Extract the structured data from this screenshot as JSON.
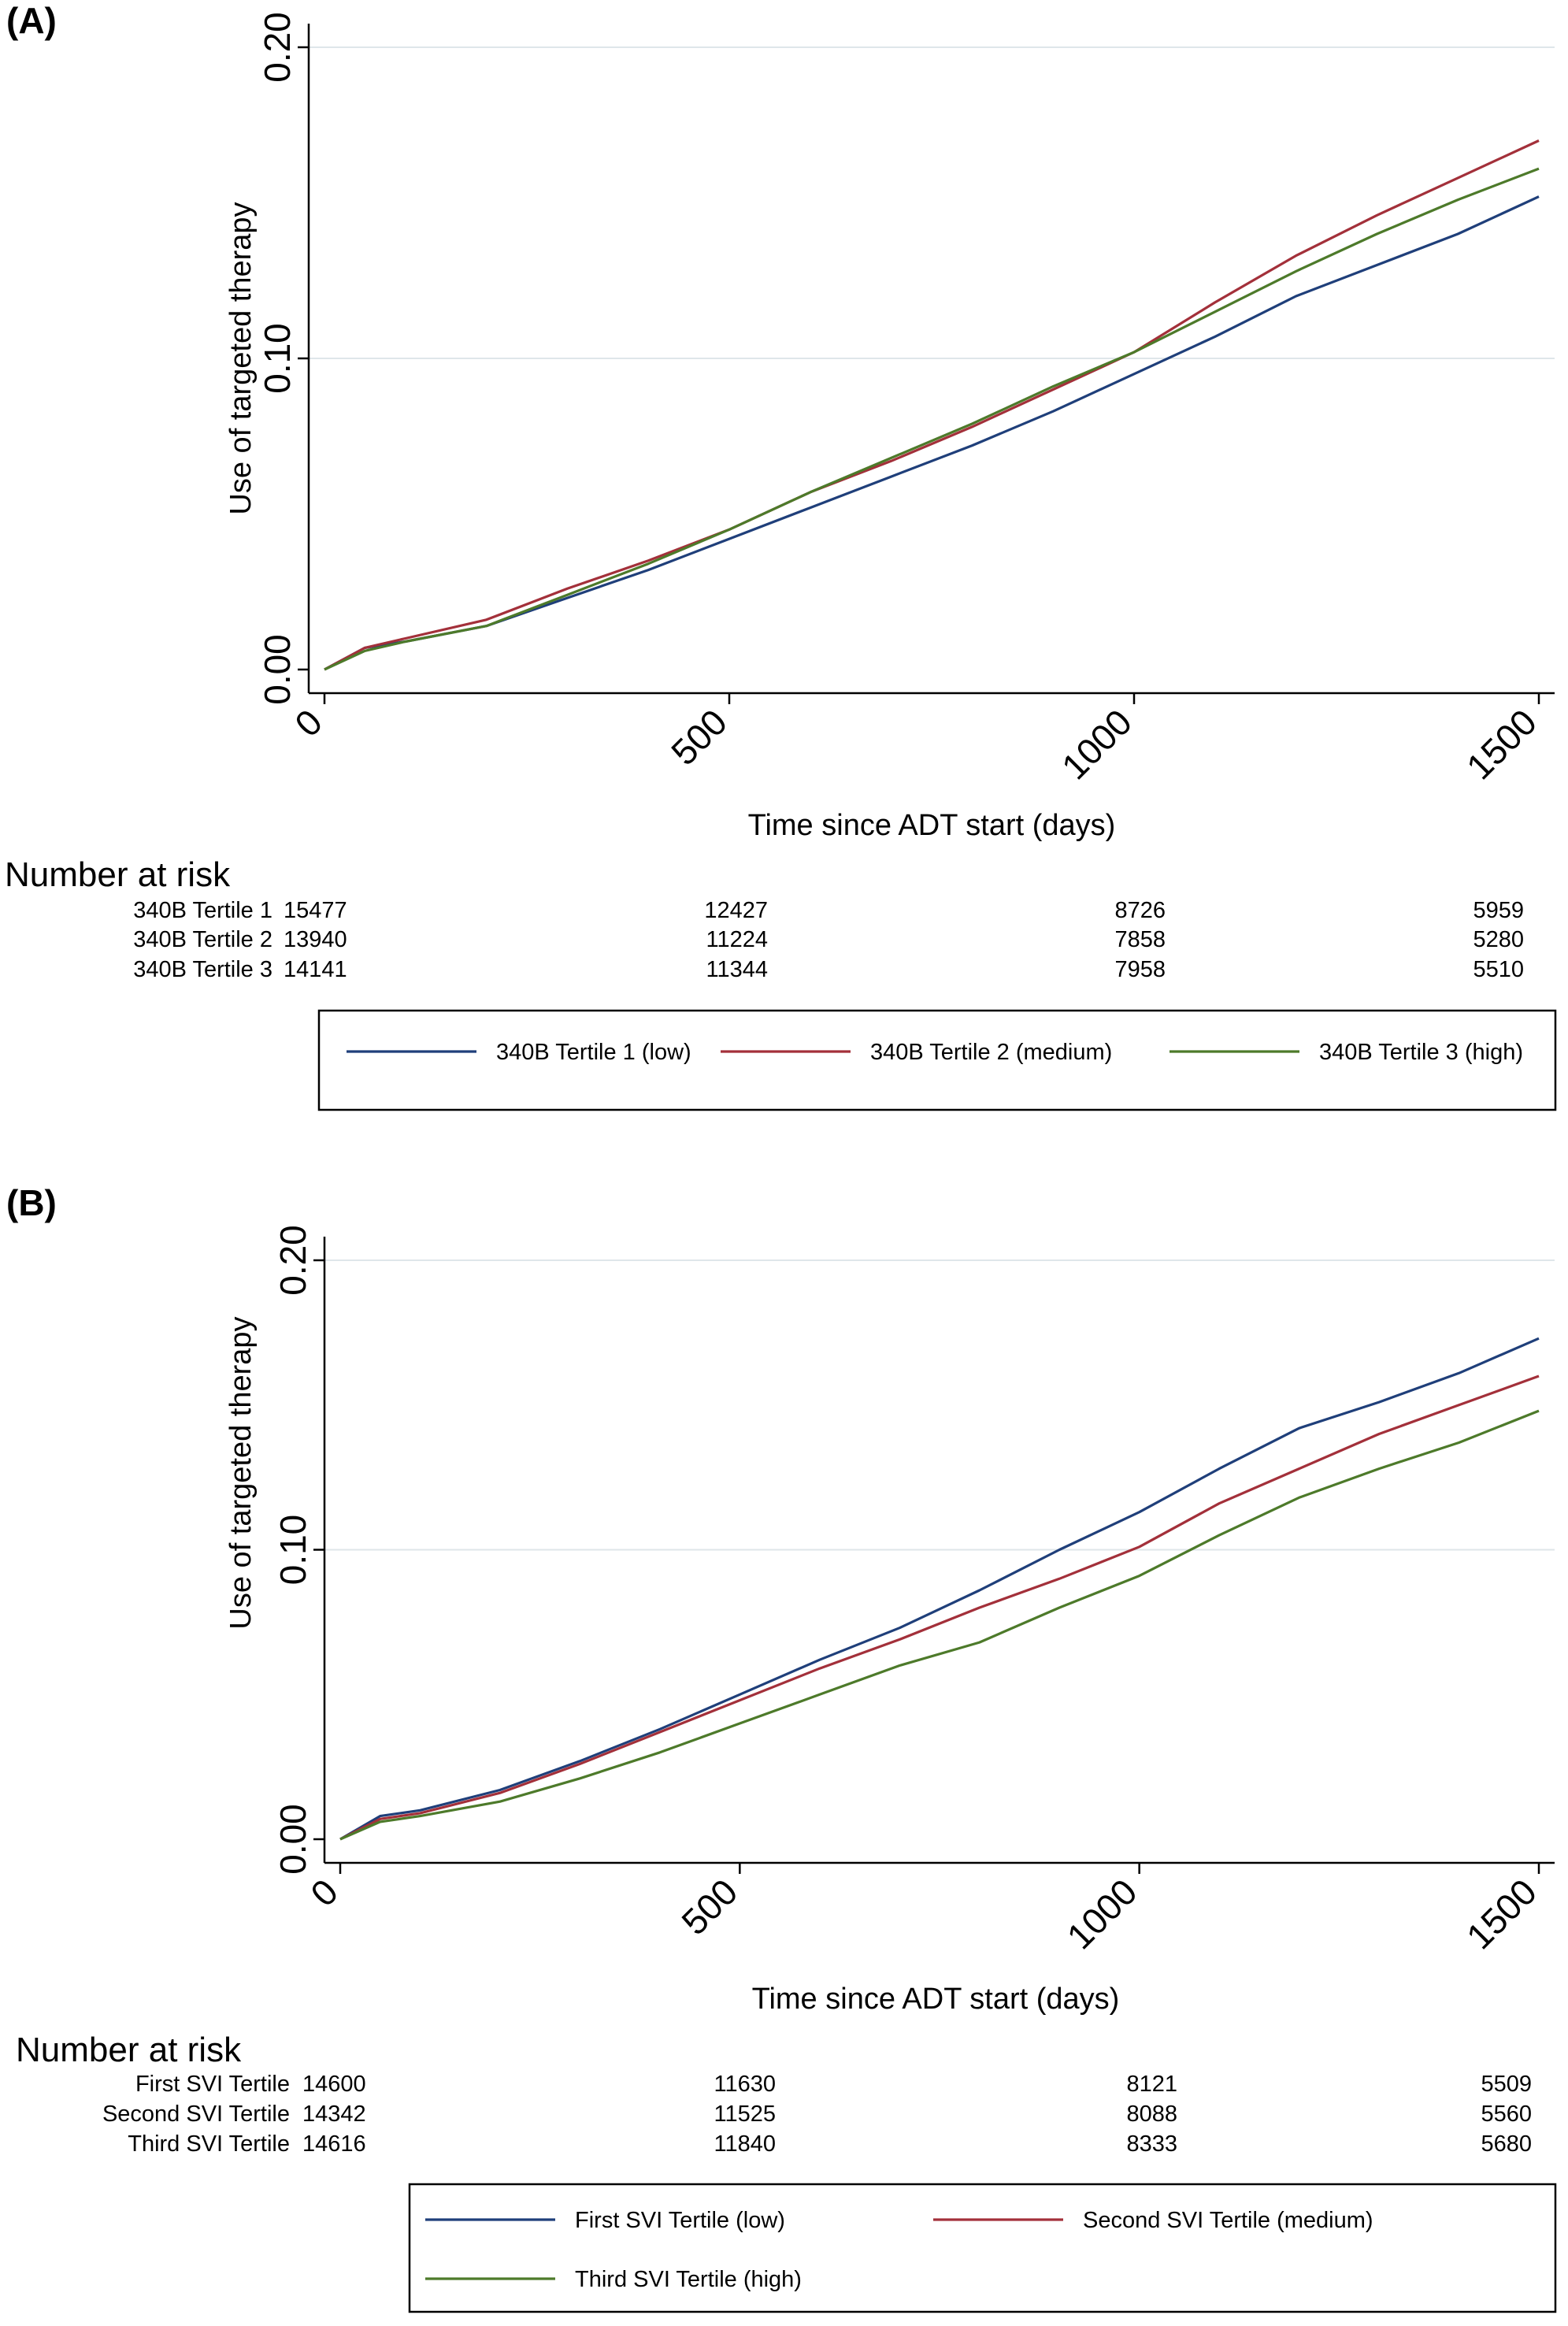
{
  "chart_data": [
    {
      "type": "line",
      "panel_label": "(A)",
      "xlabel": "Time since ADT start (days)",
      "ylabel": "Use of targeted therapy",
      "xlim": [
        0,
        1500
      ],
      "ylim": [
        0,
        0.2
      ],
      "x_ticks": [
        "0",
        "500",
        "1000",
        "1500"
      ],
      "y_ticks": [
        "0.00",
        "0.10",
        "0.20"
      ],
      "grid": "horizontal",
      "series": [
        {
          "name": "340B Tertile 1 (low)",
          "color": "#1f3f7a",
          "x": [
            0,
            50,
            100,
            200,
            300,
            400,
            500,
            600,
            700,
            800,
            900,
            1000,
            1100,
            1200,
            1300,
            1400,
            1500
          ],
          "y": [
            0,
            0.007,
            0.009,
            0.014,
            0.023,
            0.032,
            0.042,
            0.052,
            0.062,
            0.072,
            0.083,
            0.095,
            0.107,
            0.12,
            0.13,
            0.14,
            0.152
          ]
        },
        {
          "name": "340B Tertile 2 (medium)",
          "color": "#a3303a",
          "x": [
            0,
            50,
            100,
            200,
            300,
            400,
            500,
            600,
            700,
            800,
            900,
            1000,
            1100,
            1200,
            1300,
            1400,
            1500
          ],
          "y": [
            0,
            0.007,
            0.01,
            0.016,
            0.026,
            0.035,
            0.045,
            0.057,
            0.067,
            0.078,
            0.09,
            0.102,
            0.118,
            0.133,
            0.146,
            0.158,
            0.17
          ]
        },
        {
          "name": "340B Tertile 3 (high)",
          "color": "#4d7a2a",
          "x": [
            0,
            50,
            100,
            200,
            300,
            400,
            500,
            600,
            700,
            800,
            900,
            1000,
            1100,
            1200,
            1300,
            1400,
            1500
          ],
          "y": [
            0,
            0.006,
            0.009,
            0.014,
            0.024,
            0.034,
            0.045,
            0.057,
            0.068,
            0.079,
            0.091,
            0.102,
            0.115,
            0.128,
            0.14,
            0.151,
            0.161
          ]
        }
      ],
      "risk_table": {
        "title": "Number at risk",
        "columns": [
          "0",
          "500",
          "1000",
          "1500"
        ],
        "rows": [
          {
            "label": "340B Tertile 1",
            "values": [
              "15477",
              "12427",
              "8726",
              "5959"
            ]
          },
          {
            "label": "340B Tertile 2",
            "values": [
              "13940",
              "11224",
              "7858",
              "5280"
            ]
          },
          {
            "label": "340B Tertile 3",
            "values": [
              "14141",
              "11344",
              "7958",
              "5510"
            ]
          }
        ]
      },
      "legend_placement": "bottom"
    },
    {
      "type": "line",
      "panel_label": "(B)",
      "xlabel": "Time since ADT start (days)",
      "ylabel": "Use of targeted therapy",
      "xlim": [
        0,
        1500
      ],
      "ylim": [
        0,
        0.2
      ],
      "x_ticks": [
        "0",
        "500",
        "1000",
        "1500"
      ],
      "y_ticks": [
        "0.00",
        "0.10",
        "0.20"
      ],
      "grid": "horizontal",
      "series": [
        {
          "name": "First SVI Tertile (low)",
          "color": "#1f3f7a",
          "x": [
            0,
            50,
            100,
            200,
            300,
            400,
            500,
            600,
            700,
            800,
            900,
            1000,
            1100,
            1200,
            1300,
            1400,
            1500
          ],
          "y": [
            0,
            0.008,
            0.01,
            0.017,
            0.027,
            0.038,
            0.05,
            0.062,
            0.073,
            0.086,
            0.1,
            0.113,
            0.128,
            0.142,
            0.151,
            0.161,
            0.173
          ]
        },
        {
          "name": "Second SVI Tertile (medium)",
          "color": "#a3303a",
          "x": [
            0,
            50,
            100,
            200,
            300,
            400,
            500,
            600,
            700,
            800,
            900,
            1000,
            1100,
            1200,
            1300,
            1400,
            1500
          ],
          "y": [
            0,
            0.007,
            0.009,
            0.016,
            0.026,
            0.037,
            0.048,
            0.059,
            0.069,
            0.08,
            0.09,
            0.101,
            0.116,
            0.128,
            0.14,
            0.15,
            0.16
          ]
        },
        {
          "name": "Third SVI Tertile (high)",
          "color": "#4d7a2a",
          "x": [
            0,
            50,
            100,
            200,
            300,
            400,
            500,
            600,
            700,
            800,
            900,
            1000,
            1100,
            1200,
            1300,
            1400,
            1500
          ],
          "y": [
            0,
            0.006,
            0.008,
            0.013,
            0.021,
            0.03,
            0.04,
            0.05,
            0.06,
            0.068,
            0.08,
            0.091,
            0.105,
            0.118,
            0.128,
            0.137,
            0.148
          ]
        }
      ],
      "risk_table": {
        "title": "Number at risk",
        "columns": [
          "0",
          "500",
          "1000",
          "1500"
        ],
        "rows": [
          {
            "label": "First SVI Tertile",
            "values": [
              "14600",
              "11630",
              "8121",
              "5509"
            ]
          },
          {
            "label": "Second SVI Tertile",
            "values": [
              "14342",
              "11525",
              "8088",
              "5560"
            ]
          },
          {
            "label": "Third SVI Tertile",
            "values": [
              "14616",
              "11840",
              "8333",
              "5680"
            ]
          }
        ]
      },
      "legend_placement": "bottom"
    }
  ]
}
